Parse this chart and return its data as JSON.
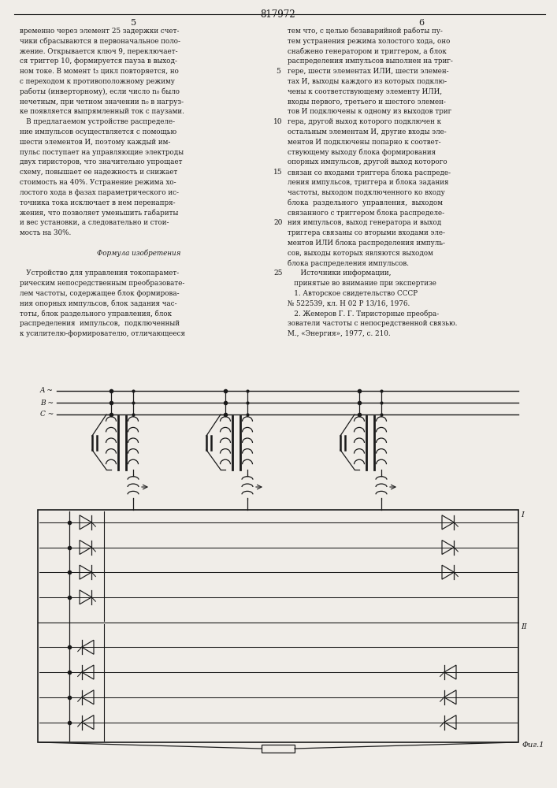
{
  "page_number": "817972",
  "col_left": "5",
  "col_right": "6",
  "background": "#f0ede8",
  "text_color": "#1a1a1a",
  "line_color": "#1a1a1a",
  "left_text": [
    "временно через элемент 25 задержки счет-",
    "чики сбрасываются в первоначальное поло-",
    "жение. Открывается ключ 9, переключает-",
    "ся триггер 10, формируется пауза в выход-",
    "ном токе. В момент t₃ цикл повторяется, но",
    "с переходом к противоположному режиму",
    "работы (инверторному), если число n₀ было",
    "нечетным, при четном значении n₀ в нагруз-",
    "ке появляется выпрямленный ток с паузами.",
    "   В предлагаемом устройстве распределе-",
    "ние импульсов осуществляется с помощью",
    "шести элементов И, поэтому каждый им-",
    "пульс поступает на управляющие электроды",
    "двух тиристоров, что значительно упрощает",
    "схему, повышает ее надежность и снижает",
    "стоимость на 40%. Устранение режима хо-",
    "лостого хода в фазах параметрического ис-",
    "точника тока исключает в нем перенапря-",
    "жения, что позволяет уменьшить габариты",
    "и вес установки, а следовательно и стои-",
    "мость на 30%.",
    "",
    "      Формула изобретения",
    "",
    "   Устройство для управления токопарамет-",
    "рическим непосредственным преобразовате-",
    "лем частоты, содержащее блок формирова-",
    "ния опорных импульсов, блок задания час-",
    "тоты, блок раздельного управления, блок",
    "распределения  импульсов,  подключенный",
    "к усилителю-формирователю, отличающееся"
  ],
  "right_text": [
    "тем что, с целью безаварийной работы пу-",
    "тем устранения режима холостого хода, оно",
    "снабжено генератором и триггером, а блок",
    "распределения импульсов выполнен на триг-",
    "гере, шести элементах ИЛИ, шести элемен-",
    "тах И, выходы каждого из которых подклю-",
    "чены к соответствующему элементу ИЛИ,",
    "входы первого, третьего и шестого элемен-",
    "тов И подключены к одному из выходов триг",
    "гера, другой выход которого подключен к",
    "остальным элементам И, другие входы эле-",
    "ментов И подключены попарно к соответ-",
    "ствующему выходу блока формирования",
    "опорных импульсов, другой выход которого",
    "связан со входами триггера блока распреде-",
    "ления импульсов, триггера и блока задания",
    "частоты, выходом подключенного ко входу",
    "блока  раздельного  управления,  выходом",
    "связанного с триггером блока распределе-",
    "ния импульсов, выход генератора и выход",
    "триггера связаны со вторыми входами эле-",
    "ментов ИЛИ блока распределения импуль-",
    "сов, выходы которых являются выходом",
    "блока распределения импульсов.",
    "      Источники информации,",
    "   принятые во внимание при экспертизе",
    "   1. Авторское свидетельство СССР",
    "№ 522539, кл. Н 02 Р 13/16, 1976.",
    "   2. Жемеров Г. Г. Тиристорные преобра-",
    "зователи частоты с непосредственной связью.",
    "М., «Энергия», 1977, с. 210."
  ],
  "line_numbers": [
    5,
    10,
    15,
    20,
    25
  ],
  "line_number_rows": [
    4,
    9,
    14,
    19,
    24
  ],
  "fig_label": "Φиг.1",
  "phase_labels": [
    "A ~",
    "B ~",
    "C ~"
  ],
  "roman_I": "I",
  "roman_II": "II"
}
